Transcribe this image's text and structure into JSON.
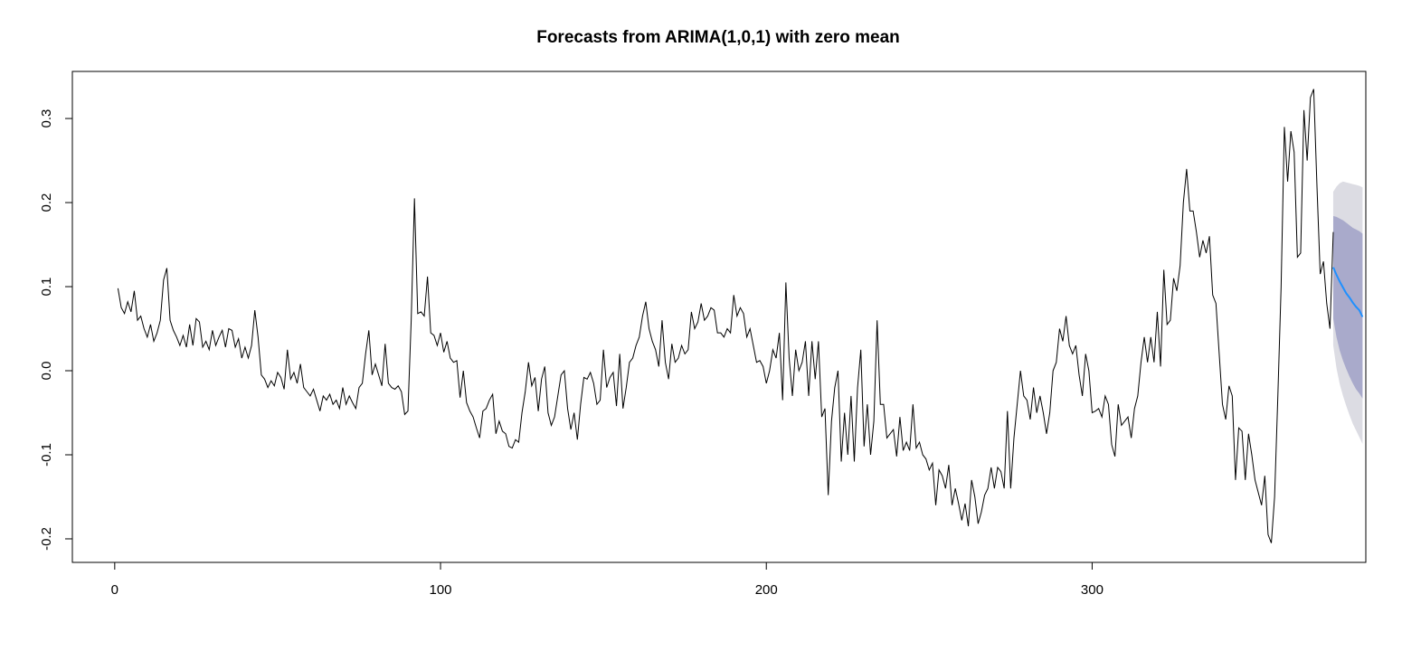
{
  "chart_data": {
    "type": "line",
    "title": "Forecasts from ARIMA(1,0,1) with zero mean",
    "xlabel": "",
    "ylabel": "",
    "xlim": [
      -13,
      384
    ],
    "ylim": [
      -0.228,
      0.356
    ],
    "x_ticks": [
      0,
      100,
      200,
      300
    ],
    "x_tick_labels": [
      "0",
      "100",
      "200",
      "300"
    ],
    "y_ticks": [
      -0.2,
      -0.1,
      0.0,
      0.1,
      0.2,
      0.3
    ],
    "y_tick_labels": [
      "-0.2",
      "-0.1",
      "0.0",
      "0.1",
      "0.2",
      "0.3"
    ],
    "grid": false,
    "legend": "none",
    "colors": {
      "observed": "#000000",
      "forecast": "#1e90ff",
      "band80": "#a9aacb",
      "band95": "#dcdce3"
    },
    "observed_anchors": [
      [
        1,
        0.098
      ],
      [
        2,
        0.075
      ],
      [
        3,
        0.068
      ],
      [
        4,
        0.082
      ],
      [
        5,
        0.07
      ],
      [
        6,
        0.095
      ],
      [
        7,
        0.06
      ],
      [
        8,
        0.065
      ],
      [
        9,
        0.05
      ],
      [
        10,
        0.04
      ],
      [
        11,
        0.055
      ],
      [
        12,
        0.035
      ],
      [
        13,
        0.045
      ],
      [
        14,
        0.06
      ],
      [
        15,
        0.108
      ],
      [
        16,
        0.122
      ],
      [
        17,
        0.06
      ],
      [
        18,
        0.048
      ],
      [
        19,
        0.04
      ],
      [
        20,
        0.03
      ],
      [
        21,
        0.042
      ],
      [
        22,
        0.028
      ],
      [
        23,
        0.055
      ],
      [
        24,
        0.03
      ],
      [
        25,
        0.062
      ],
      [
        26,
        0.058
      ],
      [
        27,
        0.028
      ],
      [
        28,
        0.035
      ],
      [
        29,
        0.025
      ],
      [
        30,
        0.048
      ],
      [
        31,
        0.03
      ],
      [
        32,
        0.04
      ],
      [
        33,
        0.048
      ],
      [
        34,
        0.028
      ],
      [
        35,
        0.05
      ],
      [
        36,
        0.048
      ],
      [
        37,
        0.028
      ],
      [
        38,
        0.038
      ],
      [
        39,
        0.015
      ],
      [
        40,
        0.028
      ],
      [
        41,
        0.015
      ],
      [
        42,
        0.03
      ],
      [
        43,
        0.072
      ],
      [
        44,
        0.04
      ],
      [
        45,
        -0.005
      ],
      [
        46,
        -0.01
      ],
      [
        47,
        -0.02
      ],
      [
        48,
        -0.012
      ],
      [
        49,
        -0.018
      ],
      [
        50,
        -0.002
      ],
      [
        51,
        -0.008
      ],
      [
        52,
        -0.022
      ],
      [
        53,
        0.025
      ],
      [
        54,
        -0.01
      ],
      [
        55,
        -0.002
      ],
      [
        56,
        -0.015
      ],
      [
        57,
        0.008
      ],
      [
        58,
        -0.02
      ],
      [
        59,
        -0.025
      ],
      [
        60,
        -0.03
      ],
      [
        61,
        -0.022
      ],
      [
        62,
        -0.035
      ],
      [
        63,
        -0.048
      ],
      [
        64,
        -0.03
      ],
      [
        65,
        -0.035
      ],
      [
        66,
        -0.028
      ],
      [
        67,
        -0.04
      ],
      [
        68,
        -0.035
      ],
      [
        69,
        -0.045
      ],
      [
        70,
        -0.02
      ],
      [
        71,
        -0.04
      ],
      [
        72,
        -0.03
      ],
      [
        73,
        -0.038
      ],
      [
        74,
        -0.045
      ],
      [
        75,
        -0.02
      ],
      [
        76,
        -0.015
      ],
      [
        77,
        0.02
      ],
      [
        78,
        0.048
      ],
      [
        79,
        -0.005
      ],
      [
        80,
        0.008
      ],
      [
        81,
        -0.005
      ],
      [
        82,
        -0.018
      ],
      [
        83,
        0.032
      ],
      [
        84,
        -0.015
      ],
      [
        85,
        -0.02
      ],
      [
        86,
        -0.022
      ],
      [
        87,
        -0.018
      ],
      [
        88,
        -0.025
      ],
      [
        89,
        -0.052
      ],
      [
        90,
        -0.048
      ],
      [
        91,
        0.06
      ],
      [
        92,
        0.205
      ],
      [
        93,
        0.068
      ],
      [
        94,
        0.07
      ],
      [
        95,
        0.065
      ],
      [
        96,
        0.112
      ],
      [
        97,
        0.045
      ],
      [
        98,
        0.042
      ],
      [
        99,
        0.03
      ],
      [
        100,
        0.045
      ],
      [
        101,
        0.022
      ],
      [
        102,
        0.035
      ],
      [
        103,
        0.015
      ],
      [
        104,
        0.01
      ],
      [
        105,
        0.012
      ],
      [
        106,
        -0.032
      ],
      [
        107,
        0.0
      ],
      [
        108,
        -0.038
      ],
      [
        109,
        -0.048
      ],
      [
        110,
        -0.055
      ],
      [
        111,
        -0.068
      ],
      [
        112,
        -0.08
      ],
      [
        113,
        -0.048
      ],
      [
        114,
        -0.045
      ],
      [
        115,
        -0.035
      ],
      [
        116,
        -0.028
      ],
      [
        117,
        -0.075
      ],
      [
        118,
        -0.06
      ],
      [
        119,
        -0.072
      ],
      [
        120,
        -0.075
      ],
      [
        121,
        -0.09
      ],
      [
        122,
        -0.092
      ],
      [
        123,
        -0.082
      ],
      [
        124,
        -0.085
      ],
      [
        125,
        -0.05
      ],
      [
        126,
        -0.025
      ],
      [
        127,
        0.01
      ],
      [
        128,
        -0.018
      ],
      [
        129,
        -0.008
      ],
      [
        130,
        -0.048
      ],
      [
        131,
        -0.01
      ],
      [
        132,
        0.005
      ],
      [
        133,
        -0.05
      ],
      [
        134,
        -0.065
      ],
      [
        135,
        -0.055
      ],
      [
        136,
        -0.03
      ],
      [
        137,
        -0.005
      ],
      [
        138,
        0.0
      ],
      [
        139,
        -0.045
      ],
      [
        140,
        -0.07
      ],
      [
        141,
        -0.05
      ],
      [
        142,
        -0.082
      ],
      [
        143,
        -0.04
      ],
      [
        144,
        -0.008
      ],
      [
        145,
        -0.01
      ],
      [
        146,
        -0.002
      ],
      [
        147,
        -0.015
      ],
      [
        148,
        -0.04
      ],
      [
        149,
        -0.035
      ],
      [
        150,
        0.025
      ],
      [
        151,
        -0.02
      ],
      [
        152,
        -0.008
      ],
      [
        153,
        -0.002
      ],
      [
        154,
        -0.042
      ],
      [
        155,
        0.02
      ],
      [
        156,
        -0.045
      ],
      [
        157,
        -0.02
      ],
      [
        158,
        0.01
      ],
      [
        159,
        0.015
      ],
      [
        160,
        0.03
      ],
      [
        161,
        0.04
      ],
      [
        162,
        0.065
      ],
      [
        163,
        0.082
      ],
      [
        164,
        0.05
      ],
      [
        165,
        0.035
      ],
      [
        166,
        0.025
      ],
      [
        167,
        0.005
      ],
      [
        168,
        0.06
      ],
      [
        169,
        0.01
      ],
      [
        170,
        -0.01
      ],
      [
        171,
        0.032
      ],
      [
        172,
        0.01
      ],
      [
        173,
        0.015
      ],
      [
        174,
        0.03
      ],
      [
        175,
        0.02
      ],
      [
        176,
        0.025
      ],
      [
        177,
        0.07
      ],
      [
        178,
        0.05
      ],
      [
        179,
        0.058
      ],
      [
        180,
        0.08
      ],
      [
        181,
        0.06
      ],
      [
        182,
        0.065
      ],
      [
        183,
        0.075
      ],
      [
        184,
        0.072
      ],
      [
        185,
        0.045
      ],
      [
        186,
        0.045
      ],
      [
        187,
        0.04
      ],
      [
        188,
        0.05
      ],
      [
        189,
        0.045
      ],
      [
        190,
        0.09
      ],
      [
        191,
        0.065
      ],
      [
        192,
        0.075
      ],
      [
        193,
        0.068
      ],
      [
        194,
        0.04
      ],
      [
        195,
        0.05
      ],
      [
        196,
        0.03
      ],
      [
        197,
        0.01
      ],
      [
        198,
        0.012
      ],
      [
        199,
        0.005
      ],
      [
        200,
        -0.015
      ],
      [
        201,
        0.0
      ],
      [
        202,
        0.025
      ],
      [
        203,
        0.015
      ],
      [
        204,
        0.045
      ],
      [
        205,
        -0.035
      ],
      [
        206,
        0.105
      ],
      [
        207,
        0.015
      ],
      [
        208,
        -0.03
      ],
      [
        209,
        0.025
      ],
      [
        210,
        0.0
      ],
      [
        211,
        0.01
      ],
      [
        212,
        0.035
      ],
      [
        213,
        -0.03
      ],
      [
        214,
        0.035
      ],
      [
        215,
        -0.01
      ],
      [
        216,
        0.035
      ],
      [
        217,
        -0.055
      ],
      [
        218,
        -0.045
      ],
      [
        219,
        -0.148
      ],
      [
        220,
        -0.06
      ],
      [
        221,
        -0.02
      ],
      [
        222,
        0.0
      ],
      [
        223,
        -0.108
      ],
      [
        224,
        -0.05
      ],
      [
        225,
        -0.1
      ],
      [
        226,
        -0.03
      ],
      [
        227,
        -0.108
      ],
      [
        228,
        -0.02
      ],
      [
        229,
        0.025
      ],
      [
        230,
        -0.09
      ],
      [
        231,
        -0.04
      ],
      [
        232,
        -0.1
      ],
      [
        233,
        -0.06
      ],
      [
        234,
        0.06
      ],
      [
        235,
        -0.04
      ],
      [
        236,
        -0.04
      ],
      [
        237,
        -0.08
      ],
      [
        238,
        -0.075
      ],
      [
        239,
        -0.07
      ],
      [
        240,
        -0.102
      ],
      [
        241,
        -0.055
      ],
      [
        242,
        -0.095
      ],
      [
        243,
        -0.085
      ],
      [
        244,
        -0.095
      ],
      [
        245,
        -0.04
      ],
      [
        246,
        -0.092
      ],
      [
        247,
        -0.085
      ],
      [
        248,
        -0.1
      ],
      [
        249,
        -0.105
      ],
      [
        250,
        -0.118
      ],
      [
        251,
        -0.11
      ],
      [
        252,
        -0.16
      ],
      [
        253,
        -0.118
      ],
      [
        254,
        -0.125
      ],
      [
        255,
        -0.14
      ],
      [
        256,
        -0.112
      ],
      [
        257,
        -0.16
      ],
      [
        258,
        -0.14
      ],
      [
        259,
        -0.158
      ],
      [
        260,
        -0.178
      ],
      [
        261,
        -0.158
      ],
      [
        262,
        -0.185
      ],
      [
        263,
        -0.13
      ],
      [
        264,
        -0.15
      ],
      [
        265,
        -0.182
      ],
      [
        266,
        -0.168
      ],
      [
        267,
        -0.148
      ],
      [
        268,
        -0.14
      ],
      [
        269,
        -0.115
      ],
      [
        270,
        -0.14
      ],
      [
        271,
        -0.115
      ],
      [
        272,
        -0.12
      ],
      [
        273,
        -0.14
      ],
      [
        274,
        -0.048
      ],
      [
        275,
        -0.14
      ],
      [
        276,
        -0.08
      ],
      [
        277,
        -0.04
      ],
      [
        278,
        0.0
      ],
      [
        279,
        -0.03
      ],
      [
        280,
        -0.035
      ],
      [
        281,
        -0.058
      ],
      [
        282,
        -0.02
      ],
      [
        283,
        -0.05
      ],
      [
        284,
        -0.03
      ],
      [
        285,
        -0.05
      ],
      [
        286,
        -0.075
      ],
      [
        287,
        -0.05
      ],
      [
        288,
        0.0
      ],
      [
        289,
        0.01
      ],
      [
        290,
        0.05
      ],
      [
        291,
        0.035
      ],
      [
        292,
        0.065
      ],
      [
        293,
        0.03
      ],
      [
        294,
        0.02
      ],
      [
        295,
        0.03
      ],
      [
        296,
        -0.005
      ],
      [
        297,
        -0.03
      ],
      [
        298,
        0.02
      ],
      [
        299,
        0.0
      ],
      [
        300,
        -0.05
      ],
      [
        301,
        -0.048
      ],
      [
        302,
        -0.045
      ],
      [
        303,
        -0.055
      ],
      [
        304,
        -0.03
      ],
      [
        305,
        -0.04
      ],
      [
        306,
        -0.088
      ],
      [
        307,
        -0.102
      ],
      [
        308,
        -0.04
      ],
      [
        309,
        -0.065
      ],
      [
        310,
        -0.06
      ],
      [
        311,
        -0.055
      ],
      [
        312,
        -0.08
      ],
      [
        313,
        -0.045
      ],
      [
        314,
        -0.03
      ],
      [
        315,
        0.01
      ],
      [
        316,
        0.04
      ],
      [
        317,
        0.01
      ],
      [
        318,
        0.04
      ],
      [
        319,
        0.01
      ],
      [
        320,
        0.07
      ],
      [
        321,
        0.005
      ],
      [
        322,
        0.12
      ],
      [
        323,
        0.055
      ],
      [
        324,
        0.06
      ],
      [
        325,
        0.11
      ],
      [
        326,
        0.095
      ],
      [
        327,
        0.125
      ],
      [
        328,
        0.2
      ],
      [
        329,
        0.24
      ],
      [
        330,
        0.19
      ],
      [
        331,
        0.19
      ],
      [
        332,
        0.165
      ],
      [
        333,
        0.135
      ],
      [
        334,
        0.155
      ],
      [
        335,
        0.14
      ],
      [
        336,
        0.16
      ],
      [
        337,
        0.09
      ],
      [
        338,
        0.08
      ],
      [
        339,
        0.02
      ],
      [
        340,
        -0.04
      ],
      [
        341,
        -0.058
      ],
      [
        342,
        -0.018
      ],
      [
        343,
        -0.03
      ],
      [
        344,
        -0.13
      ],
      [
        345,
        -0.068
      ],
      [
        346,
        -0.072
      ],
      [
        347,
        -0.13
      ],
      [
        348,
        -0.075
      ],
      [
        349,
        -0.1
      ],
      [
        350,
        -0.13
      ],
      [
        351,
        -0.145
      ],
      [
        352,
        -0.16
      ],
      [
        353,
        -0.125
      ],
      [
        354,
        -0.195
      ],
      [
        355,
        -0.205
      ],
      [
        356,
        -0.15
      ],
      [
        357,
        -0.03
      ],
      [
        358,
        0.1
      ],
      [
        359,
        0.29
      ],
      [
        360,
        0.225
      ],
      [
        361,
        0.285
      ],
      [
        362,
        0.26
      ],
      [
        363,
        0.135
      ],
      [
        364,
        0.14
      ],
      [
        365,
        0.31
      ],
      [
        366,
        0.25
      ],
      [
        367,
        0.325
      ],
      [
        368,
        0.335
      ],
      [
        369,
        0.22
      ],
      [
        370,
        0.115
      ],
      [
        371,
        0.13
      ],
      [
        372,
        0.08
      ],
      [
        373,
        0.05
      ],
      [
        374,
        0.165
      ]
    ],
    "forecast": {
      "x": [
        374,
        375,
        376,
        377,
        378,
        379,
        380,
        381,
        382,
        383
      ],
      "mean": [
        0.123,
        0.114,
        0.106,
        0.099,
        0.092,
        0.087,
        0.081,
        0.076,
        0.072,
        0.064
      ],
      "lo80": [
        0.062,
        0.04,
        0.024,
        0.012,
        0.002,
        -0.007,
        -0.015,
        -0.022,
        -0.027,
        -0.033
      ],
      "hi80": [
        0.184,
        0.183,
        0.181,
        0.179,
        0.176,
        0.173,
        0.17,
        0.168,
        0.166,
        0.163
      ],
      "lo95": [
        0.03,
        0.003,
        -0.016,
        -0.03,
        -0.042,
        -0.053,
        -0.063,
        -0.071,
        -0.079,
        -0.087
      ],
      "hi95": [
        0.213,
        0.219,
        0.223,
        0.225,
        0.224,
        0.223,
        0.222,
        0.221,
        0.22,
        0.218
      ]
    }
  }
}
